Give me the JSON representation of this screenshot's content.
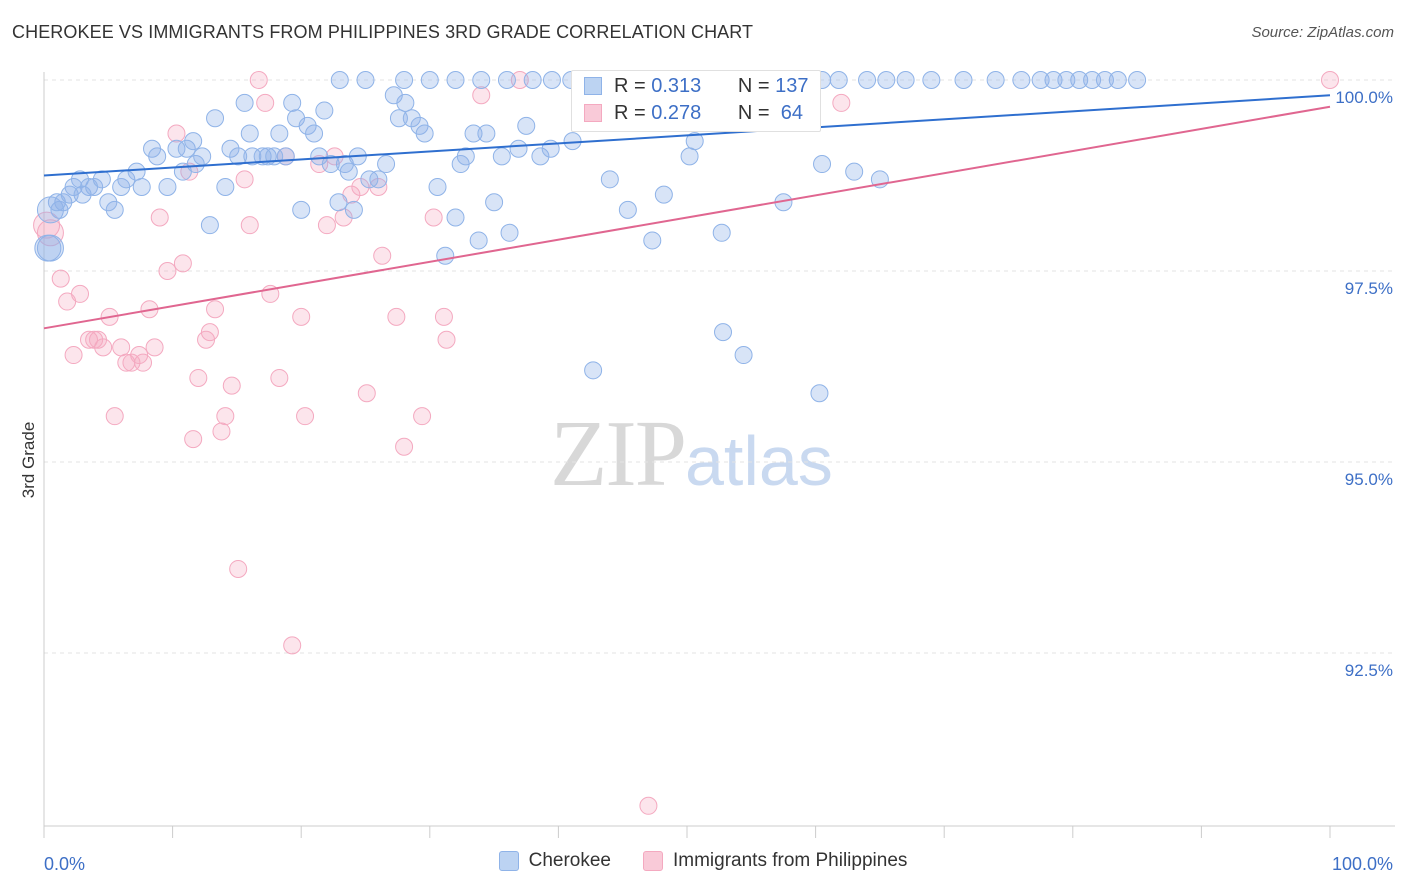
{
  "header": {
    "title": "CHEROKEE VS IMMIGRANTS FROM PHILIPPINES 3RD GRADE CORRELATION CHART",
    "source": "Source: ZipAtlas.com"
  },
  "watermark": {
    "main": "ZIP",
    "sub": "atlas"
  },
  "legend": {
    "r_label": "R =",
    "n_label": "N =",
    "rows": [
      {
        "r": "0.313",
        "n": "137"
      },
      {
        "r": "0.278",
        "n": "64"
      }
    ]
  },
  "bottom_legend": {
    "items": [
      "Cherokee",
      "Immigrants from Philippines"
    ]
  },
  "chart_data": {
    "type": "scatter",
    "title": "CHEROKEE VS IMMIGRANTS FROM PHILIPPINES 3RD GRADE CORRELATION CHART",
    "xlabel": "",
    "ylabel": "3rd Grade",
    "xlim": [
      0,
      100
    ],
    "ylim": [
      90.3,
      100.2
    ],
    "x_tick_labels": [
      "0.0%",
      "100.0%"
    ],
    "y_ticks": [
      100.0,
      97.5,
      95.0,
      92.5
    ],
    "y_tick_labels": [
      "100.0%",
      "97.5%",
      "95.0%",
      "92.5%"
    ],
    "grid": true,
    "colors": {
      "cherokee": "#8fb3e8",
      "cherokee_line": "#2f6fcf",
      "philippines": "#f4a9c0",
      "philippines_line": "#e06690",
      "tick_text": "#3d6fc6"
    },
    "series": [
      {
        "name": "Cherokee",
        "trend": [
          [
            0,
            98.75
          ],
          [
            100,
            99.8
          ]
        ],
        "points": [
          [
            0.3,
            97.8
          ],
          [
            0.5,
            98.3
          ],
          [
            1.2,
            98.3
          ],
          [
            1.5,
            98.4
          ],
          [
            2.3,
            98.6
          ],
          [
            2.8,
            98.7
          ],
          [
            3.5,
            98.6
          ],
          [
            3.9,
            98.6
          ],
          [
            4.5,
            98.7
          ],
          [
            5.0,
            98.4
          ],
          [
            5.5,
            98.3
          ],
          [
            6.0,
            98.6
          ],
          [
            6.4,
            98.7
          ],
          [
            7.2,
            98.8
          ],
          [
            7.6,
            98.6
          ],
          [
            8.4,
            99.1
          ],
          [
            8.8,
            99.0
          ],
          [
            9.6,
            98.6
          ],
          [
            10.3,
            99.1
          ],
          [
            10.8,
            98.8
          ],
          [
            11.1,
            99.1
          ],
          [
            11.6,
            99.2
          ],
          [
            11.8,
            98.9
          ],
          [
            12.3,
            99.0
          ],
          [
            12.9,
            98.1
          ],
          [
            13.3,
            99.5
          ],
          [
            14.1,
            98.6
          ],
          [
            14.5,
            99.1
          ],
          [
            15.1,
            99.0
          ],
          [
            15.6,
            99.7
          ],
          [
            16.0,
            99.3
          ],
          [
            16.2,
            99.0
          ],
          [
            17.0,
            99.0
          ],
          [
            17.4,
            99.0
          ],
          [
            17.9,
            99.0
          ],
          [
            18.3,
            99.3
          ],
          [
            18.8,
            99.0
          ],
          [
            19.3,
            99.7
          ],
          [
            19.6,
            99.5
          ],
          [
            20.0,
            98.3
          ],
          [
            20.5,
            99.4
          ],
          [
            21.0,
            99.3
          ],
          [
            21.4,
            99.0
          ],
          [
            21.8,
            99.6
          ],
          [
            22.3,
            98.9
          ],
          [
            22.9,
            98.4
          ],
          [
            23.4,
            98.9
          ],
          [
            23.7,
            98.8
          ],
          [
            24.1,
            98.3
          ],
          [
            24.4,
            99.0
          ],
          [
            25.3,
            98.7
          ],
          [
            26.0,
            98.7
          ],
          [
            26.6,
            98.9
          ],
          [
            27.2,
            99.8
          ],
          [
            27.6,
            99.5
          ],
          [
            28.1,
            99.7
          ],
          [
            28.6,
            99.5
          ],
          [
            29.2,
            99.4
          ],
          [
            29.6,
            99.3
          ],
          [
            30.6,
            98.6
          ],
          [
            31.2,
            97.7
          ],
          [
            32.0,
            98.2
          ],
          [
            32.4,
            98.9
          ],
          [
            32.8,
            99.0
          ],
          [
            33.4,
            99.3
          ],
          [
            33.8,
            97.9
          ],
          [
            34.4,
            99.3
          ],
          [
            35.0,
            98.4
          ],
          [
            35.6,
            99.0
          ],
          [
            36.2,
            98.0
          ],
          [
            36.9,
            99.1
          ],
          [
            37.5,
            99.4
          ],
          [
            38.6,
            99.0
          ],
          [
            39.4,
            99.1
          ],
          [
            41.1,
            99.2
          ],
          [
            42.7,
            96.2
          ],
          [
            42.9,
            99.5
          ],
          [
            44.0,
            98.7
          ],
          [
            45.4,
            98.3
          ],
          [
            47.3,
            97.9
          ],
          [
            48.2,
            98.5
          ],
          [
            50.2,
            99.0
          ],
          [
            50.6,
            99.2
          ],
          [
            52.7,
            98.0
          ],
          [
            52.8,
            96.7
          ],
          [
            54.4,
            96.4
          ],
          [
            54.8,
            99.5
          ],
          [
            55.6,
            99.5
          ],
          [
            57.5,
            98.4
          ],
          [
            60.3,
            95.9
          ],
          [
            60.5,
            98.9
          ],
          [
            63.0,
            98.8
          ],
          [
            65.0,
            98.7
          ],
          [
            0.5,
            97.8
          ],
          [
            1.0,
            98.4
          ],
          [
            2.0,
            98.5
          ],
          [
            3.0,
            98.5
          ],
          [
            23.0,
            100.0
          ],
          [
            25.0,
            100.0
          ],
          [
            28.0,
            100.0
          ],
          [
            30.0,
            100.0
          ],
          [
            32.0,
            100.0
          ],
          [
            34.0,
            100.0
          ],
          [
            36.0,
            100.0
          ],
          [
            38.0,
            100.0
          ],
          [
            39.5,
            100.0
          ],
          [
            41.0,
            100.0
          ],
          [
            43.0,
            100.0
          ],
          [
            45.0,
            100.0
          ],
          [
            46.5,
            100.0
          ],
          [
            47.5,
            100.0
          ],
          [
            48.5,
            100.0
          ],
          [
            50.0,
            100.0
          ],
          [
            51.0,
            100.0
          ],
          [
            52.5,
            100.0
          ],
          [
            54.0,
            100.0
          ],
          [
            55.3,
            100.0
          ],
          [
            56.5,
            100.0
          ],
          [
            58.0,
            100.0
          ],
          [
            59.5,
            100.0
          ],
          [
            60.5,
            100.0
          ],
          [
            61.8,
            100.0
          ],
          [
            64.0,
            100.0
          ],
          [
            65.5,
            100.0
          ],
          [
            67.0,
            100.0
          ],
          [
            69.0,
            100.0
          ],
          [
            71.5,
            100.0
          ],
          [
            74.0,
            100.0
          ],
          [
            76.0,
            100.0
          ],
          [
            77.5,
            100.0
          ],
          [
            78.5,
            100.0
          ],
          [
            79.5,
            100.0
          ],
          [
            80.5,
            100.0
          ],
          [
            81.5,
            100.0
          ],
          [
            82.5,
            100.0
          ],
          [
            83.5,
            100.0
          ],
          [
            85.0,
            100.0
          ]
        ]
      },
      {
        "name": "Immigrants from Philippines",
        "trend": [
          [
            0,
            96.75
          ],
          [
            100,
            99.65
          ]
        ],
        "points": [
          [
            0.2,
            98.1
          ],
          [
            0.5,
            98.0
          ],
          [
            1.3,
            97.4
          ],
          [
            1.8,
            97.1
          ],
          [
            2.3,
            96.4
          ],
          [
            2.8,
            97.2
          ],
          [
            3.5,
            96.6
          ],
          [
            3.9,
            96.6
          ],
          [
            4.2,
            96.6
          ],
          [
            4.6,
            96.5
          ],
          [
            5.1,
            96.9
          ],
          [
            5.5,
            95.6
          ],
          [
            6.0,
            96.5
          ],
          [
            6.4,
            96.3
          ],
          [
            6.8,
            96.3
          ],
          [
            7.4,
            96.4
          ],
          [
            7.7,
            96.3
          ],
          [
            8.2,
            97.0
          ],
          [
            8.6,
            96.5
          ],
          [
            9.0,
            98.2
          ],
          [
            9.6,
            97.5
          ],
          [
            10.3,
            99.3
          ],
          [
            10.8,
            97.6
          ],
          [
            11.3,
            98.8
          ],
          [
            11.6,
            95.3
          ],
          [
            12.0,
            96.1
          ],
          [
            12.6,
            96.6
          ],
          [
            12.9,
            96.7
          ],
          [
            13.3,
            97.0
          ],
          [
            13.8,
            95.4
          ],
          [
            14.1,
            95.6
          ],
          [
            14.6,
            96.0
          ],
          [
            15.1,
            93.6
          ],
          [
            15.6,
            98.7
          ],
          [
            16.0,
            98.1
          ],
          [
            16.7,
            100.0
          ],
          [
            17.2,
            99.7
          ],
          [
            17.6,
            97.2
          ],
          [
            18.3,
            96.1
          ],
          [
            18.8,
            99.0
          ],
          [
            19.3,
            92.6
          ],
          [
            20.0,
            96.9
          ],
          [
            20.3,
            95.6
          ],
          [
            21.4,
            98.9
          ],
          [
            22.0,
            98.1
          ],
          [
            22.6,
            99.0
          ],
          [
            23.3,
            98.2
          ],
          [
            23.9,
            98.5
          ],
          [
            24.6,
            98.6
          ],
          [
            25.1,
            95.9
          ],
          [
            26.0,
            98.6
          ],
          [
            26.3,
            97.7
          ],
          [
            27.4,
            96.9
          ],
          [
            28.0,
            95.2
          ],
          [
            29.4,
            95.6
          ],
          [
            30.3,
            98.2
          ],
          [
            31.1,
            96.9
          ],
          [
            31.3,
            96.6
          ],
          [
            34.0,
            99.8
          ],
          [
            37.0,
            100.0
          ],
          [
            47.0,
            90.5
          ],
          [
            56.0,
            100.0
          ],
          [
            62.0,
            99.7
          ],
          [
            100.0,
            100.0
          ]
        ]
      }
    ]
  }
}
